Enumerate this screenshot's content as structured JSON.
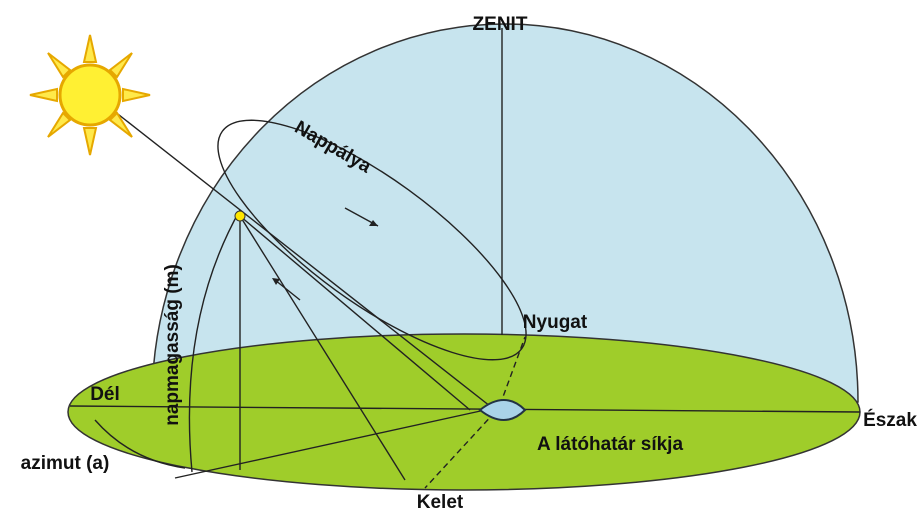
{
  "labels": {
    "zenith": "ZENIT",
    "sun_path": "Nappálya",
    "west": "Nyugat",
    "south": "Dél",
    "north": "Észak",
    "horizon_plane": "A látóhatár síkja",
    "altitude": "napmagasság (m)",
    "azimuth": "azimut (a)",
    "east": "Kelet"
  }
}
